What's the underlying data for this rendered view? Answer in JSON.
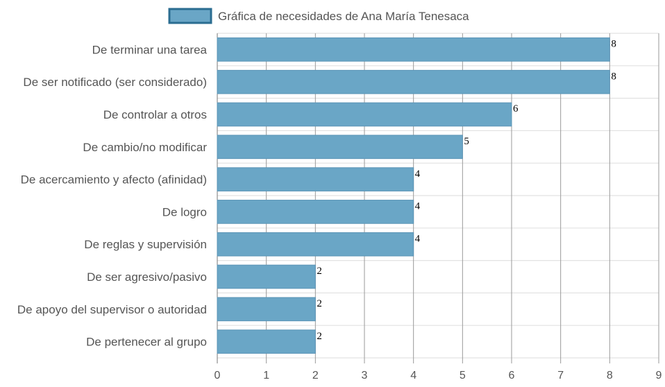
{
  "chart_data": {
    "type": "bar",
    "orientation": "horizontal",
    "categories": [
      "De terminar una tarea",
      "De ser notificado (ser considerado)",
      "De controlar a otros",
      "De cambio/no modificar",
      "De acercamiento y afecto (afinidad)",
      "De logro",
      "De reglas y supervisión",
      "De ser agresivo/pasivo",
      "De apoyo del supervisor o autoridad",
      "De pertenecer al grupo"
    ],
    "series": [
      {
        "name": "Gráfica de necesidades de Ana María Tenesaca",
        "values": [
          8,
          8,
          6,
          5,
          4,
          4,
          4,
          2,
          2,
          2
        ]
      }
    ],
    "xlim": [
      0,
      9
    ],
    "xticks": [
      "0",
      "1",
      "2",
      "3",
      "4",
      "5",
      "6",
      "7",
      "8",
      "9"
    ],
    "grid": true,
    "legend_position": "top",
    "data_labels": true,
    "colors": {
      "bar_fill": "#6aa6c6",
      "bar_border": "#5a94b6",
      "legend_border": "#2b6d91",
      "grid_vertical": "#9a9a9a",
      "grid_horizontal": "#e2e2e2",
      "axis": "#777777",
      "text": "#555555"
    }
  }
}
